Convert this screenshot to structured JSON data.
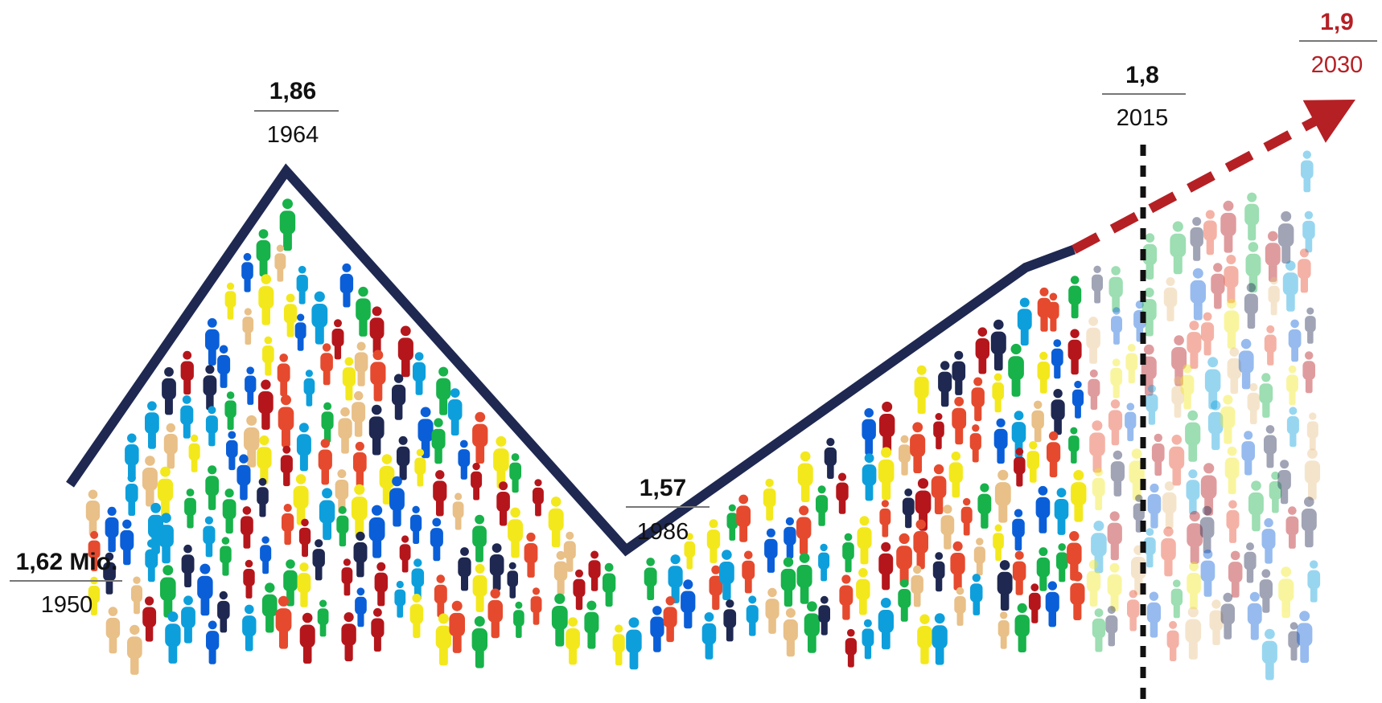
{
  "chart_data": {
    "type": "line",
    "x": [
      1950,
      1964,
      1986,
      2015
    ],
    "values": [
      1.62,
      1.86,
      1.57,
      1.8
    ],
    "x_labels": [
      "1950",
      "1964",
      "1986",
      "2015"
    ],
    "value_labels": [
      "1,62 Mio.",
      "1,86",
      "1,57",
      "1,8"
    ],
    "projection": {
      "x": 2030,
      "value": 1.9,
      "x_label": "2030",
      "value_label": "1,9"
    },
    "colors": {
      "line": "#1e2851",
      "projection": "#b52025",
      "divider": "#111111",
      "figures": [
        "#1e2851",
        "#0d9fdc",
        "#e54a2e",
        "#f3e81c",
        "#e8c088",
        "#17b24a",
        "#b5161b",
        "#0a5fd8",
        "#c7c7c7"
      ]
    },
    "decoration": "crowd-of-person-icons"
  }
}
